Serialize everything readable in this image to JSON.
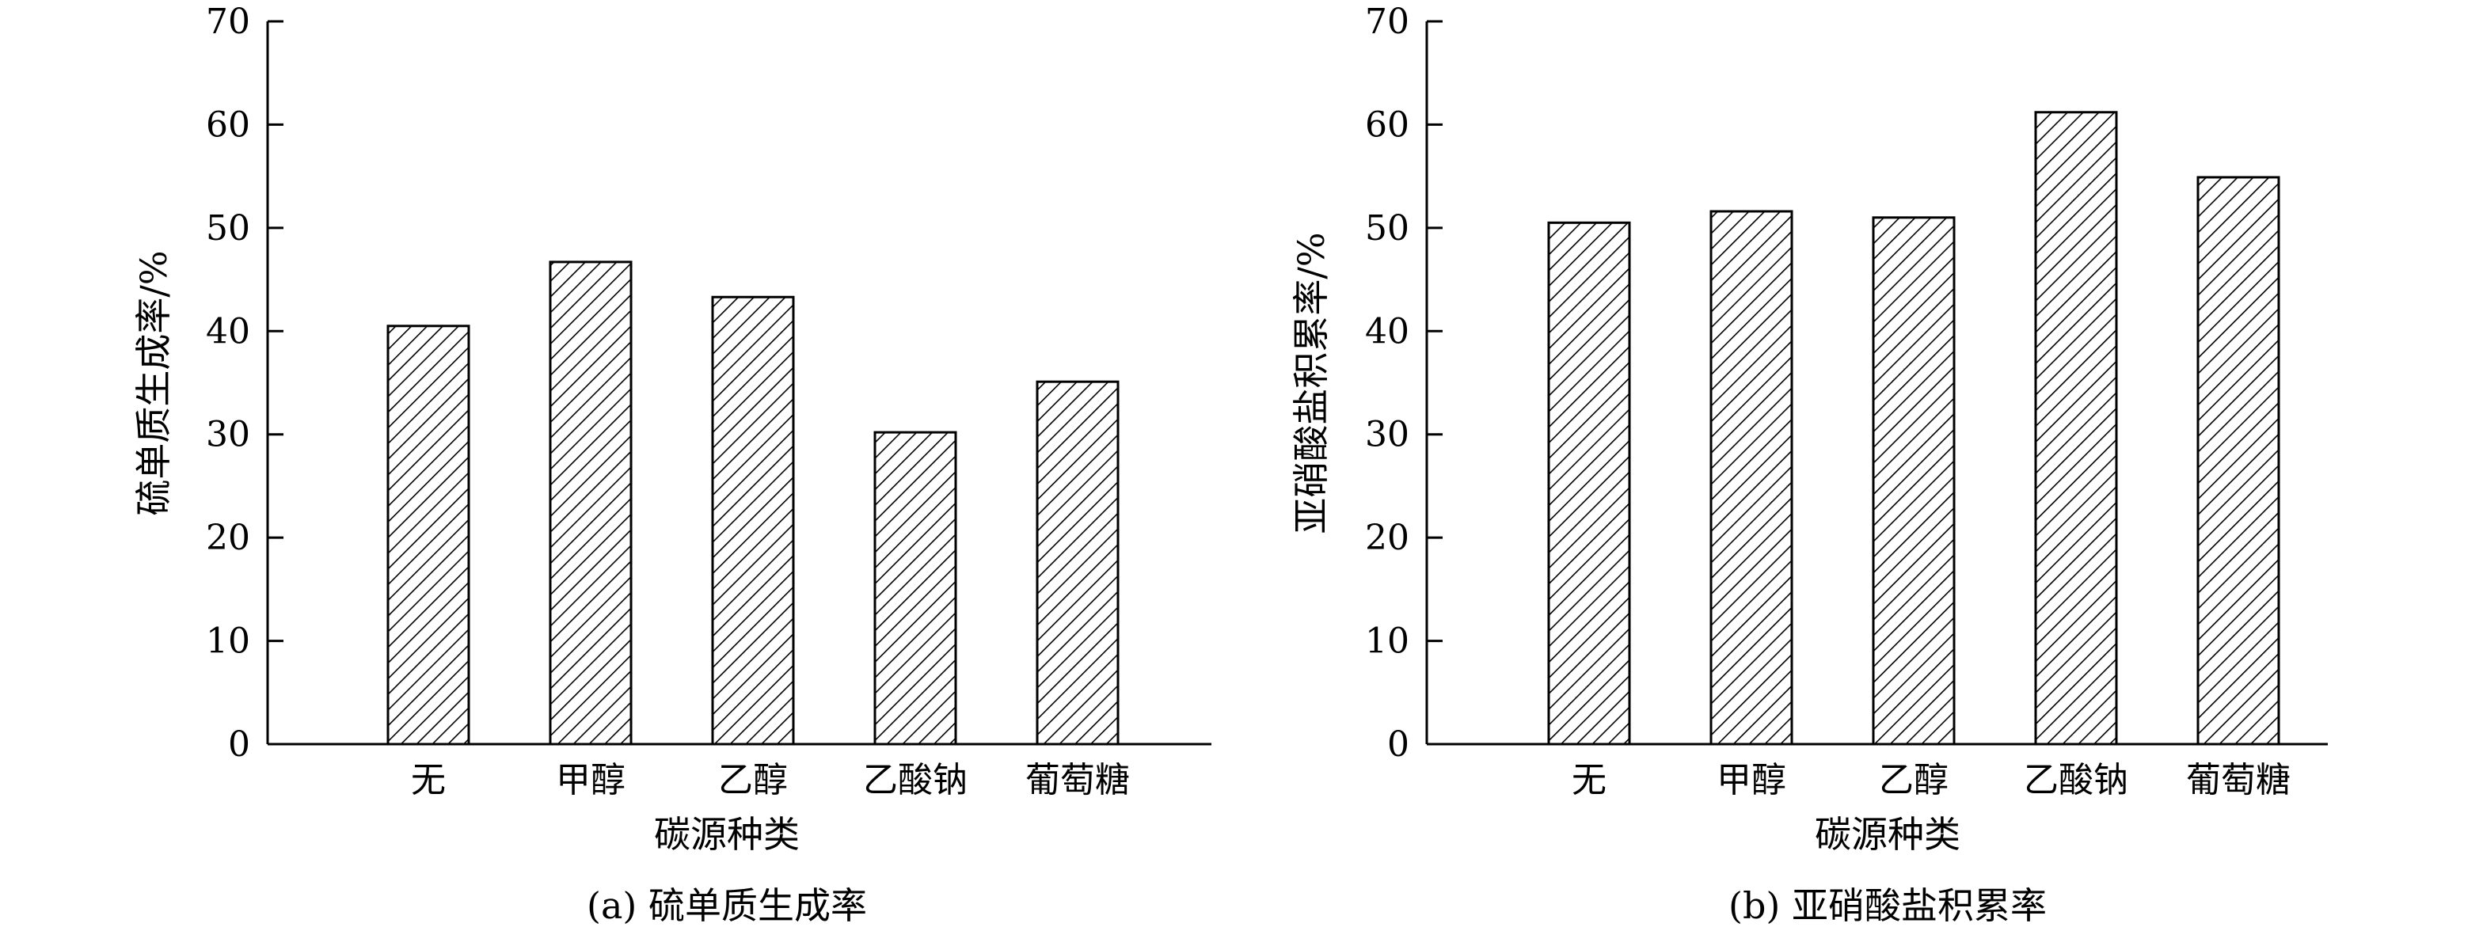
{
  "chart_data": [
    {
      "type": "bar",
      "caption": "(a) 硫单质生成率",
      "xlabel": "碳源种类",
      "ylabel": "硫单质生成率/%",
      "categories": [
        "无",
        "甲醇",
        "乙醇",
        "乙酸钠",
        "葡萄糖"
      ],
      "values": [
        40.5,
        46.7,
        43.3,
        30.2,
        35.1
      ],
      "ylim": [
        0,
        70
      ],
      "yticks": [
        "0",
        "10",
        "20",
        "30",
        "40",
        "50",
        "60",
        "70"
      ],
      "bar_pattern": "diagonal-hatch",
      "grid": false
    },
    {
      "type": "bar",
      "caption": "(b) 亚硝酸盐积累率",
      "xlabel": "碳源种类",
      "ylabel": "亚硝酸盐积累率/%",
      "categories": [
        "无",
        "甲醇",
        "乙醇",
        "乙酸钠",
        "葡萄糖"
      ],
      "values": [
        50.5,
        51.6,
        51.0,
        61.2,
        54.9
      ],
      "ylim": [
        0,
        70
      ],
      "yticks": [
        "0",
        "10",
        "20",
        "30",
        "40",
        "50",
        "60",
        "70"
      ],
      "bar_pattern": "diagonal-hatch",
      "grid": false
    }
  ]
}
